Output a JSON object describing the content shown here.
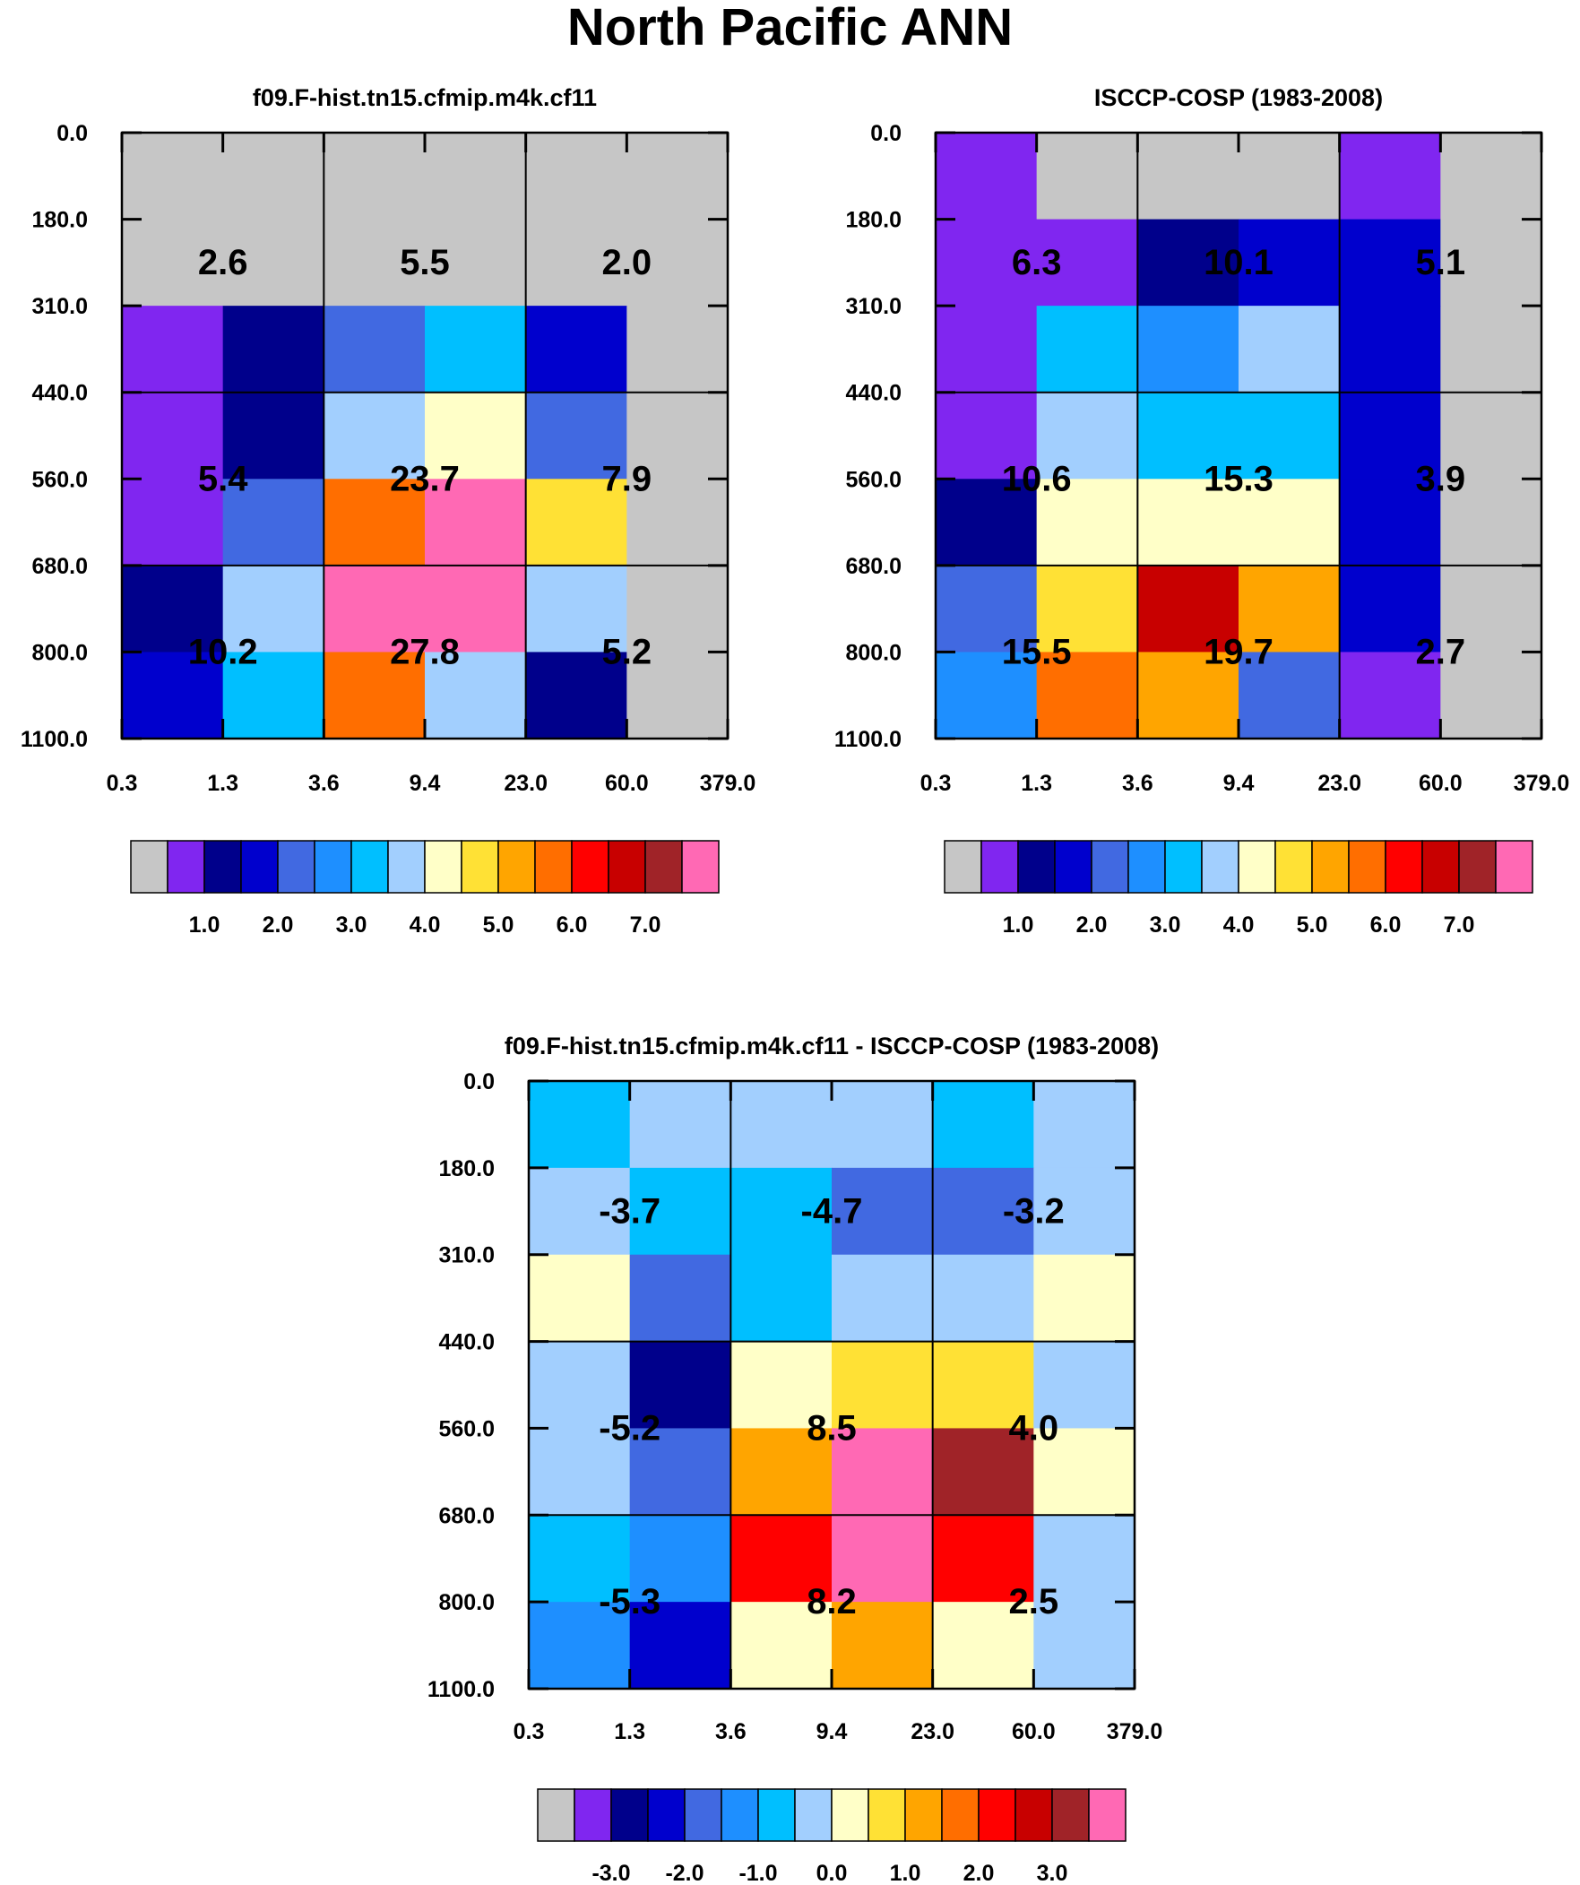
{
  "title": "North Pacific ANN",
  "palette": {
    "0": "#c6c6c6",
    "1": "#8026f0",
    "2": "#00008b",
    "3": "#0000cd",
    "4": "#4169e1",
    "5": "#1e8fff",
    "6": "#00bfff",
    "7": "#a2cffe",
    "8": "#ffffc8",
    "9": "#ffe135",
    "10": "#ffa500",
    "11": "#ff6e00",
    "12": "#ff0000",
    "13": "#c80000",
    "14": "#a02328",
    "15": "#ff69b4"
  },
  "chart_data": [
    {
      "type": "heatmap",
      "title": "f09.F-hist.tn15.cfmip.m4k.cf11",
      "x_ticks": [
        "0.3",
        "1.3",
        "3.6",
        "9.4",
        "23.0",
        "60.0",
        "379.0"
      ],
      "y_ticks": [
        "0.0",
        "180.0",
        "310.0",
        "440.0",
        "560.0",
        "680.0",
        "800.0",
        "1100.0"
      ],
      "cell_colors": [
        [
          0,
          0,
          0,
          0,
          0,
          0
        ],
        [
          0,
          0,
          0,
          0,
          0,
          0
        ],
        [
          1,
          2,
          4,
          6,
          3,
          0
        ],
        [
          1,
          2,
          7,
          8,
          4,
          0
        ],
        [
          1,
          4,
          11,
          15,
          9,
          0
        ],
        [
          2,
          7,
          15,
          15,
          7,
          0
        ],
        [
          3,
          6,
          11,
          7,
          2,
          0
        ]
      ],
      "annotations": [
        [
          "2.6",
          "5.5",
          "2.0"
        ],
        [
          "5.4",
          "23.7",
          "7.9"
        ],
        [
          "10.2",
          "27.8",
          "5.2"
        ]
      ],
      "colorbar": {
        "colors": [
          0,
          1,
          2,
          3,
          4,
          5,
          6,
          7,
          8,
          9,
          10,
          11,
          12,
          13,
          14,
          15
        ],
        "labels": [
          "1.0",
          "2.0",
          "3.0",
          "4.0",
          "5.0",
          "6.0",
          "7.0"
        ]
      }
    },
    {
      "type": "heatmap",
      "title": "ISCCP-COSP (1983-2008)",
      "x_ticks": [
        "0.3",
        "1.3",
        "3.6",
        "9.4",
        "23.0",
        "60.0",
        "379.0"
      ],
      "y_ticks": [
        "0.0",
        "180.0",
        "310.0",
        "440.0",
        "560.0",
        "680.0",
        "800.0",
        "1100.0"
      ],
      "cell_colors": [
        [
          1,
          0,
          0,
          0,
          1,
          0
        ],
        [
          1,
          1,
          2,
          3,
          3,
          0
        ],
        [
          1,
          6,
          5,
          7,
          3,
          0
        ],
        [
          1,
          7,
          6,
          6,
          3,
          0
        ],
        [
          2,
          8,
          8,
          8,
          3,
          0
        ],
        [
          4,
          9,
          13,
          10,
          3,
          0
        ],
        [
          5,
          11,
          10,
          4,
          1,
          0
        ]
      ],
      "annotations": [
        [
          "6.3",
          "10.1",
          "5.1"
        ],
        [
          "10.6",
          "15.3",
          "3.9"
        ],
        [
          "15.5",
          "19.7",
          "2.7"
        ]
      ],
      "colorbar": {
        "colors": [
          0,
          1,
          2,
          3,
          4,
          5,
          6,
          7,
          8,
          9,
          10,
          11,
          12,
          13,
          14,
          15
        ],
        "labels": [
          "1.0",
          "2.0",
          "3.0",
          "4.0",
          "5.0",
          "6.0",
          "7.0"
        ]
      }
    },
    {
      "type": "heatmap",
      "title": "f09.F-hist.tn15.cfmip.m4k.cf11 - ISCCP-COSP (1983-2008)",
      "x_ticks": [
        "0.3",
        "1.3",
        "3.6",
        "9.4",
        "23.0",
        "60.0",
        "379.0"
      ],
      "y_ticks": [
        "0.0",
        "180.0",
        "310.0",
        "440.0",
        "560.0",
        "680.0",
        "800.0",
        "1100.0"
      ],
      "cell_colors": [
        [
          6,
          7,
          7,
          7,
          6,
          7
        ],
        [
          7,
          6,
          6,
          4,
          4,
          7
        ],
        [
          8,
          4,
          6,
          7,
          7,
          8
        ],
        [
          7,
          2,
          8,
          9,
          9,
          7
        ],
        [
          7,
          4,
          10,
          15,
          14,
          8
        ],
        [
          6,
          5,
          12,
          15,
          12,
          7
        ],
        [
          5,
          3,
          8,
          10,
          8,
          7
        ]
      ],
      "annotations": [
        [
          "-3.7",
          "-4.7",
          "-3.2"
        ],
        [
          "-5.2",
          "8.5",
          "4.0"
        ],
        [
          "-5.3",
          "8.2",
          "2.5"
        ]
      ],
      "colorbar": {
        "colors": [
          0,
          1,
          2,
          3,
          4,
          5,
          6,
          7,
          8,
          9,
          10,
          11,
          12,
          13,
          14,
          15
        ],
        "labels": [
          "-3.0",
          "-2.0",
          "-1.0",
          "0.0",
          "1.0",
          "2.0",
          "3.0"
        ]
      }
    }
  ]
}
